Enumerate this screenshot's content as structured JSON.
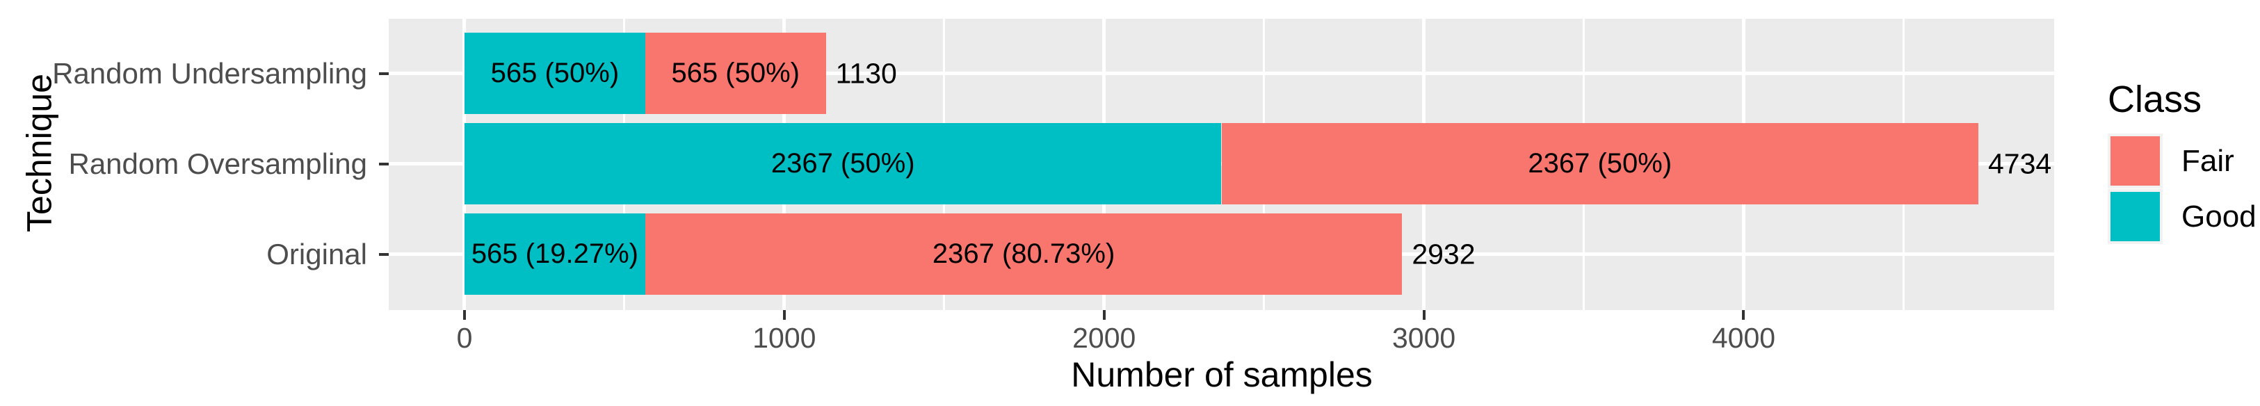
{
  "chart_data": {
    "type": "bar",
    "orientation": "horizontal",
    "stacked": true,
    "title": "",
    "xlabel": "Number of samples",
    "ylabel": "Technique",
    "categories": [
      "Random Undersampling",
      "Random Oversampling",
      "Original"
    ],
    "series": [
      {
        "name": "Good",
        "color": "#00BFC4",
        "values": [
          565,
          2367,
          565
        ],
        "labels": [
          "565 (50%)",
          "2367 (50%)",
          "565 (19.27%)"
        ]
      },
      {
        "name": "Fair",
        "color": "#F8766D",
        "values": [
          565,
          2367,
          2367
        ],
        "labels": [
          "565 (50%)",
          "2367 (50%)",
          "2367 (80.73%)"
        ]
      }
    ],
    "totals": [
      1130,
      4734,
      2932
    ],
    "x_ticks": [
      0,
      1000,
      2000,
      3000,
      4000
    ],
    "x_minor_ticks": [
      500,
      1500,
      2500,
      3500,
      4500
    ],
    "xlim": [
      -237,
      4971
    ],
    "grid": true,
    "legend": {
      "title": "Class",
      "position": "right",
      "entries": [
        {
          "label": "Fair",
          "color": "#F8766D"
        },
        {
          "label": "Good",
          "color": "#00BFC4"
        }
      ]
    },
    "colors": {
      "panel_background": "#EBEBEB",
      "gridline": "#FFFFFF",
      "axis_text": "#4D4D4D",
      "tick_mark": "#333333",
      "label_text": "#000000"
    }
  }
}
